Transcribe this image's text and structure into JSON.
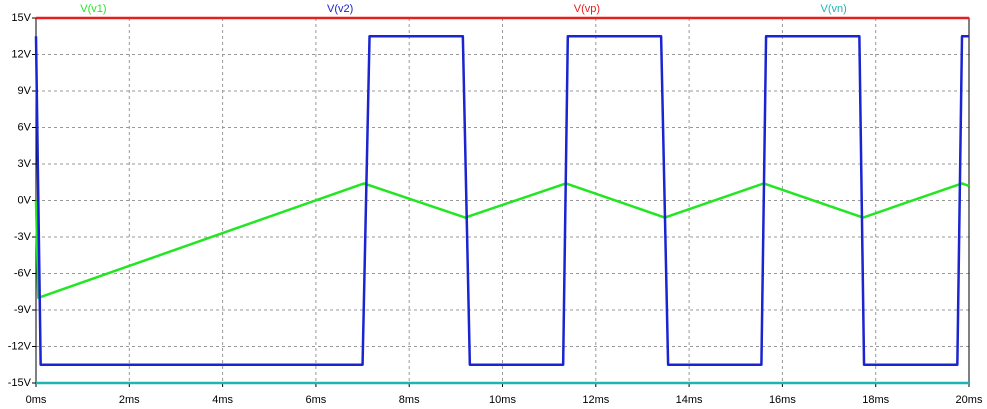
{
  "chart_data": {
    "type": "line",
    "xlim": [
      0,
      20
    ],
    "ylim": [
      -15,
      15
    ],
    "xticks": [
      {
        "value": 0,
        "label": "0ms"
      },
      {
        "value": 2,
        "label": "2ms"
      },
      {
        "value": 4,
        "label": "4ms"
      },
      {
        "value": 6,
        "label": "6ms"
      },
      {
        "value": 8,
        "label": "8ms"
      },
      {
        "value": 10,
        "label": "10ms"
      },
      {
        "value": 12,
        "label": "12ms"
      },
      {
        "value": 14,
        "label": "14ms"
      },
      {
        "value": 16,
        "label": "16ms"
      },
      {
        "value": 18,
        "label": "18ms"
      },
      {
        "value": 20,
        "label": "20ms"
      }
    ],
    "yticks": [
      {
        "value": -15,
        "label": "-15V"
      },
      {
        "value": -12,
        "label": "-12V"
      },
      {
        "value": -9,
        "label": "-9V"
      },
      {
        "value": -6,
        "label": "-6V"
      },
      {
        "value": -3,
        "label": "-3V"
      },
      {
        "value": 0,
        "label": "0V"
      },
      {
        "value": 3,
        "label": "3V"
      },
      {
        "value": 6,
        "label": "6V"
      },
      {
        "value": 9,
        "label": "9V"
      },
      {
        "value": 12,
        "label": "12V"
      },
      {
        "value": 15,
        "label": "15V"
      }
    ],
    "grid": true,
    "series": [
      {
        "name": "V(v1)",
        "color": "#22e622",
        "x": [
          0,
          0.05,
          7.03,
          9.2,
          11.36,
          13.48,
          15.6,
          17.73,
          19.85,
          20
        ],
        "values": [
          0,
          -8,
          1.4,
          -1.4,
          1.4,
          -1.4,
          1.4,
          -1.4,
          1.4,
          1.2
        ]
      },
      {
        "name": "V(v2)",
        "color": "#1a24d0",
        "x": [
          0,
          0.1,
          7.0,
          7.15,
          9.15,
          9.3,
          11.3,
          11.4,
          13.4,
          13.55,
          15.55,
          15.65,
          17.65,
          17.75,
          19.75,
          19.85,
          20
        ],
        "values": [
          13.5,
          -13.5,
          -13.5,
          13.5,
          13.5,
          -13.5,
          -13.5,
          13.5,
          13.5,
          -13.5,
          -13.5,
          13.5,
          13.5,
          -13.5,
          -13.5,
          13.5,
          13.5
        ]
      },
      {
        "name": "V(vp)",
        "color": "#e61e1e",
        "x": [
          0,
          20
        ],
        "values": [
          15,
          15
        ]
      },
      {
        "name": "V(vn)",
        "color": "#1eb4b4",
        "x": [
          0,
          20
        ],
        "values": [
          -15,
          -15
        ]
      }
    ]
  }
}
